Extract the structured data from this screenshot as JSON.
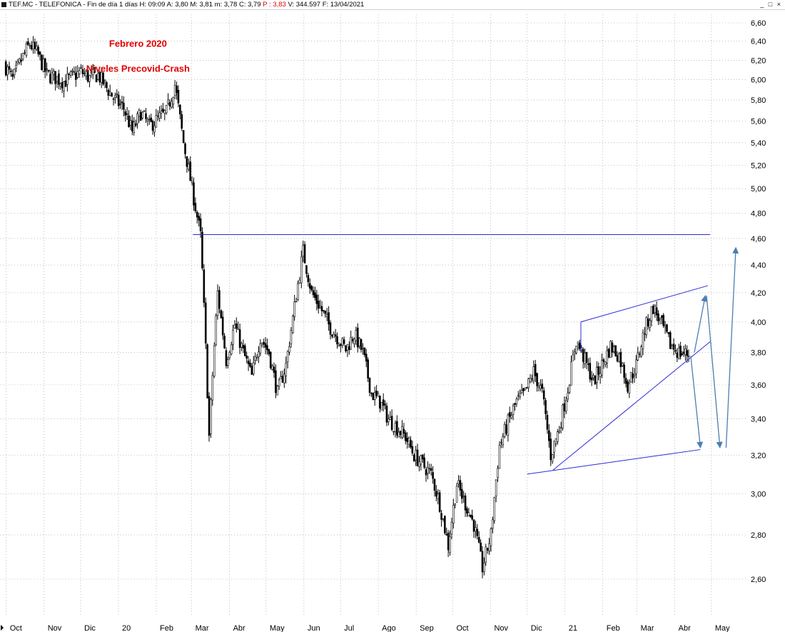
{
  "window": {
    "icon": "window-menu-icon",
    "title_prefix": "TEF.MC - TELEFONICA - Fin de día 1 días  H: 09:09  A: 3,80  M: 3,81  m: 3,78  C: 3,79",
    "title_p_label": "P : 3,83",
    "title_suffix": "V: 344.597  F: 13/04/2021",
    "buttons": {
      "minimize": "_",
      "maximize": "□",
      "close": "×"
    }
  },
  "colors": {
    "candles": "#000000",
    "trendlines": "#2b2bd6",
    "arrows": "#4a7fb0",
    "annotation": "#e00000",
    "grid": "#9a9a9a",
    "highlight": "#e00000"
  },
  "chart_data": {
    "type": "candlestick",
    "title": "",
    "xlabel": "",
    "ylabel": "",
    "ylim": [
      2.5,
      6.7
    ],
    "y_scale": "log",
    "grid": true,
    "y_ticks": [
      "6,60",
      "6,40",
      "6,20",
      "6,00",
      "5,80",
      "5,60",
      "5,40",
      "5,20",
      "5,00",
      "4,80",
      "4,60",
      "4,40",
      "4,20",
      "4,00",
      "3,80",
      "3,60",
      "3,40",
      "3,20",
      "3,00",
      "2,80",
      "2,60"
    ],
    "y_tick_values": [
      6.6,
      6.4,
      6.2,
      6.0,
      5.8,
      5.6,
      5.4,
      5.2,
      5.0,
      4.8,
      4.6,
      4.4,
      4.2,
      4.0,
      3.8,
      3.6,
      3.4,
      3.2,
      3.0,
      2.8,
      2.6
    ],
    "x_labels": [
      "Oct",
      "Nov",
      "Dic",
      "20",
      "Feb",
      "Mar",
      "Abr",
      "May",
      "Jun",
      "Jul",
      "Ago",
      "Sep",
      "Oct",
      "Nov",
      "Dic",
      "21",
      "Feb",
      "Mar",
      "Abr",
      "May"
    ],
    "x_label_dates": [
      "2019-10-01",
      "2019-11-01",
      "2019-12-01",
      "2020-01-01",
      "2020-02-01",
      "2020-03-01",
      "2020-04-01",
      "2020-05-01",
      "2020-06-01",
      "2020-07-01",
      "2020-08-01",
      "2020-09-01",
      "2020-10-01",
      "2020-11-01",
      "2020-12-01",
      "2021-01-01",
      "2021-02-01",
      "2021-03-01",
      "2021-04-01",
      "2021-05-01"
    ],
    "price_path": [
      {
        "date": "2019-09-30",
        "close": 6.16
      },
      {
        "date": "2019-10-07",
        "close": 6.0
      },
      {
        "date": "2019-10-14",
        "close": 6.2
      },
      {
        "date": "2019-10-21",
        "close": 6.37
      },
      {
        "date": "2019-10-28",
        "close": 6.25
      },
      {
        "date": "2019-11-04",
        "close": 6.05
      },
      {
        "date": "2019-11-11",
        "close": 6.02
      },
      {
        "date": "2019-11-18",
        "close": 5.98
      },
      {
        "date": "2019-11-25",
        "close": 6.03
      },
      {
        "date": "2019-12-02",
        "close": 6.08
      },
      {
        "date": "2019-12-09",
        "close": 6.02
      },
      {
        "date": "2019-12-16",
        "close": 6.05
      },
      {
        "date": "2019-12-23",
        "close": 5.92
      },
      {
        "date": "2019-12-30",
        "close": 5.8
      },
      {
        "date": "2020-01-06",
        "close": 5.72
      },
      {
        "date": "2020-01-13",
        "close": 5.5
      },
      {
        "date": "2020-01-20",
        "close": 5.68
      },
      {
        "date": "2020-01-27",
        "close": 5.55
      },
      {
        "date": "2020-02-03",
        "close": 5.62
      },
      {
        "date": "2020-02-10",
        "close": 5.68
      },
      {
        "date": "2020-02-17",
        "close": 5.95
      },
      {
        "date": "2020-02-24",
        "close": 5.4
      },
      {
        "date": "2020-03-02",
        "close": 5.0
      },
      {
        "date": "2020-03-09",
        "close": 4.62
      },
      {
        "date": "2020-03-16",
        "close": 3.3
      },
      {
        "date": "2020-03-23",
        "close": 4.2
      },
      {
        "date": "2020-03-30",
        "close": 3.75
      },
      {
        "date": "2020-04-06",
        "close": 3.98
      },
      {
        "date": "2020-04-13",
        "close": 3.8
      },
      {
        "date": "2020-04-20",
        "close": 3.65
      },
      {
        "date": "2020-04-27",
        "close": 3.9
      },
      {
        "date": "2020-05-04",
        "close": 3.8
      },
      {
        "date": "2020-05-11",
        "close": 3.55
      },
      {
        "date": "2020-05-18",
        "close": 3.72
      },
      {
        "date": "2020-05-25",
        "close": 4.1
      },
      {
        "date": "2020-06-01",
        "close": 4.5
      },
      {
        "date": "2020-06-08",
        "close": 4.2
      },
      {
        "date": "2020-06-15",
        "close": 4.1
      },
      {
        "date": "2020-06-22",
        "close": 3.98
      },
      {
        "date": "2020-06-29",
        "close": 3.9
      },
      {
        "date": "2020-07-06",
        "close": 3.82
      },
      {
        "date": "2020-07-13",
        "close": 3.92
      },
      {
        "date": "2020-07-20",
        "close": 3.8
      },
      {
        "date": "2020-07-27",
        "close": 3.55
      },
      {
        "date": "2020-08-03",
        "close": 3.5
      },
      {
        "date": "2020-08-10",
        "close": 3.4
      },
      {
        "date": "2020-08-17",
        "close": 3.35
      },
      {
        "date": "2020-08-24",
        "close": 3.3
      },
      {
        "date": "2020-08-31",
        "close": 3.2
      },
      {
        "date": "2020-09-07",
        "close": 3.15
      },
      {
        "date": "2020-09-14",
        "close": 3.1
      },
      {
        "date": "2020-09-21",
        "close": 2.95
      },
      {
        "date": "2020-09-28",
        "close": 2.75
      },
      {
        "date": "2020-10-05",
        "close": 3.05
      },
      {
        "date": "2020-10-12",
        "close": 2.95
      },
      {
        "date": "2020-10-19",
        "close": 2.85
      },
      {
        "date": "2020-10-26",
        "close": 2.65
      },
      {
        "date": "2020-11-02",
        "close": 2.8
      },
      {
        "date": "2020-11-09",
        "close": 3.25
      },
      {
        "date": "2020-11-16",
        "close": 3.38
      },
      {
        "date": "2020-11-23",
        "close": 3.5
      },
      {
        "date": "2020-11-30",
        "close": 3.55
      },
      {
        "date": "2020-12-07",
        "close": 3.68
      },
      {
        "date": "2020-12-14",
        "close": 3.55
      },
      {
        "date": "2020-12-21",
        "close": 3.2
      },
      {
        "date": "2020-12-28",
        "close": 3.35
      },
      {
        "date": "2021-01-04",
        "close": 3.58
      },
      {
        "date": "2021-01-11",
        "close": 3.88
      },
      {
        "date": "2021-01-18",
        "close": 3.75
      },
      {
        "date": "2021-01-25",
        "close": 3.62
      },
      {
        "date": "2021-02-01",
        "close": 3.72
      },
      {
        "date": "2021-02-08",
        "close": 3.84
      },
      {
        "date": "2021-02-15",
        "close": 3.78
      },
      {
        "date": "2021-02-22",
        "close": 3.6
      },
      {
        "date": "2021-03-01",
        "close": 3.72
      },
      {
        "date": "2021-03-08",
        "close": 3.95
      },
      {
        "date": "2021-03-15",
        "close": 4.1
      },
      {
        "date": "2021-03-22",
        "close": 3.98
      },
      {
        "date": "2021-03-29",
        "close": 3.85
      },
      {
        "date": "2021-04-05",
        "close": 3.8
      },
      {
        "date": "2021-04-13",
        "close": 3.79
      }
    ],
    "drawings": {
      "horizontal_line": {
        "from": "2020-03-02",
        "to": "2021-04-30",
        "price": 4.63
      },
      "triangle": [
        {
          "from": {
            "date": "2020-12-01",
            "price": 3.1
          },
          "to": {
            "date": "2021-04-22",
            "price": 3.23
          }
        },
        {
          "from": {
            "date": "2020-12-22",
            "price": 3.12
          },
          "to": {
            "date": "2021-04-30",
            "price": 3.87
          }
        },
        {
          "from": {
            "date": "2021-01-14",
            "price": 4.0
          },
          "to": {
            "date": "2021-04-28",
            "price": 4.25
          }
        },
        {
          "from": {
            "date": "2021-01-14",
            "price": 3.8
          },
          "to": {
            "date": "2021-01-14",
            "price": 4.0
          }
        }
      ],
      "arrows": [
        {
          "from": {
            "date": "2021-04-14",
            "price": 3.78
          },
          "to": {
            "date": "2021-04-22",
            "price": 3.24
          }
        },
        {
          "from": {
            "date": "2021-04-17",
            "price": 3.8
          },
          "to": {
            "date": "2021-04-26",
            "price": 4.18
          }
        },
        {
          "from": {
            "date": "2021-04-27",
            "price": 4.18
          },
          "to": {
            "date": "2021-05-08",
            "price": 3.24
          }
        },
        {
          "from": {
            "date": "2021-05-13",
            "price": 3.24
          },
          "to": {
            "date": "2021-05-21",
            "price": 4.53
          }
        }
      ]
    },
    "annotations": [
      {
        "text": "Febrero 2020",
        "date": "2020-01-17",
        "price": 6.34
      },
      {
        "text": "Niveles Precovid-Crash",
        "date": "2020-01-17",
        "price": 6.08
      }
    ]
  }
}
